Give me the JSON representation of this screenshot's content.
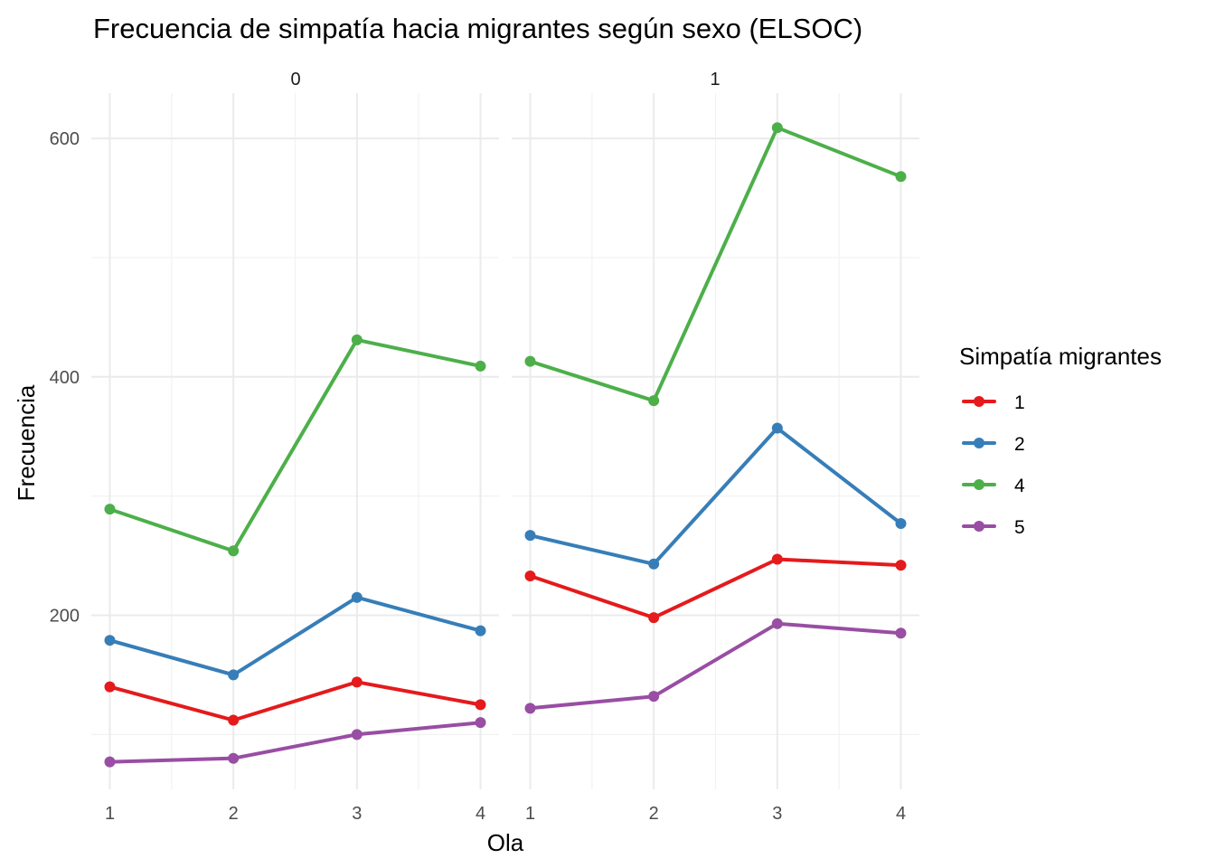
{
  "chart_data": {
    "type": "line",
    "title": "Frecuencia de simpatía hacia migrantes según sexo (ELSOC)",
    "xlabel": "Ola",
    "ylabel": "Frecuencia",
    "x": [
      1,
      2,
      3,
      4
    ],
    "x_tick_labels": [
      "1",
      "2",
      "3",
      "4"
    ],
    "y_ticks": [
      200,
      400,
      600
    ],
    "y_tick_labels": [
      "200",
      "400",
      "600"
    ],
    "ylim": [
      54,
      638
    ],
    "grid": true,
    "legend": {
      "title": "Simpatía migrantes",
      "placement": "right"
    },
    "series_styles": [
      {
        "key": "1",
        "label": "1",
        "color": "#E41A1C"
      },
      {
        "key": "2",
        "label": "2",
        "color": "#377EB8"
      },
      {
        "key": "4",
        "label": "4",
        "color": "#4DAF4A"
      },
      {
        "key": "5",
        "label": "5",
        "color": "#984EA3"
      }
    ],
    "facets": [
      {
        "label": "0",
        "series": [
          {
            "key": "1",
            "values": [
              140,
              112,
              144,
              125
            ]
          },
          {
            "key": "2",
            "values": [
              179,
              150,
              215,
              187
            ]
          },
          {
            "key": "4",
            "values": [
              289,
              254,
              431,
              409
            ]
          },
          {
            "key": "5",
            "values": [
              77,
              80,
              100,
              110
            ]
          }
        ]
      },
      {
        "label": "1",
        "series": [
          {
            "key": "1",
            "values": [
              233,
              198,
              247,
              242
            ]
          },
          {
            "key": "2",
            "values": [
              267,
              243,
              357,
              277
            ]
          },
          {
            "key": "4",
            "values": [
              413,
              380,
              609,
              568
            ]
          },
          {
            "key": "5",
            "values": [
              122,
              132,
              193,
              185
            ]
          }
        ]
      }
    ]
  }
}
